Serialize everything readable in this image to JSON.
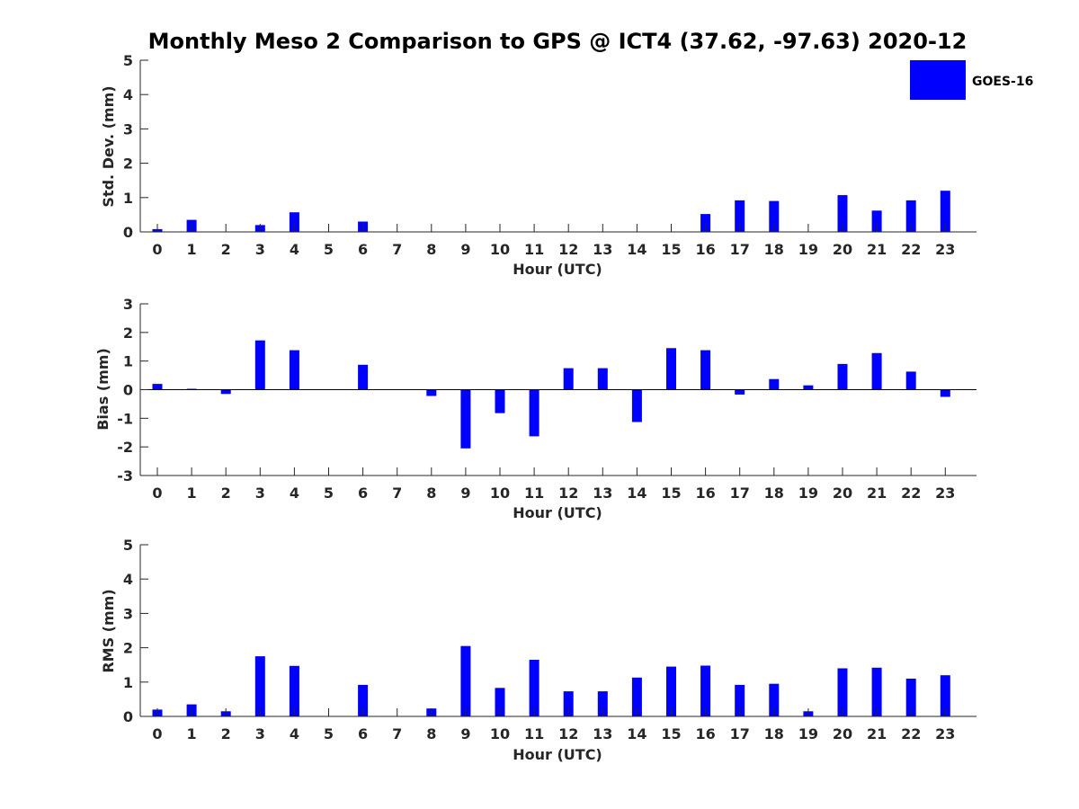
{
  "colors": {
    "bar": "#0000ff",
    "axis": "#262626",
    "background": "#ffffff"
  },
  "chart_data": [
    {
      "type": "bar",
      "title": "Monthly Meso 2 Comparison to GPS @ ICT4 (37.62, -97.63) 2020-12",
      "xlabel": "Hour (UTC)",
      "ylabel": "Std. Dev. (mm)",
      "ylim": [
        0,
        5
      ],
      "yticks": [
        "0",
        "1",
        "2",
        "3",
        "4",
        "5"
      ],
      "categories": [
        "0",
        "1",
        "2",
        "3",
        "4",
        "5",
        "6",
        "7",
        "8",
        "9",
        "10",
        "11",
        "12",
        "13",
        "14",
        "15",
        "16",
        "17",
        "18",
        "19",
        "20",
        "21",
        "22",
        "23"
      ],
      "series": [
        {
          "name": "GOES-16",
          "values": [
            0.08,
            0.35,
            0,
            0.2,
            0.57,
            0,
            0.3,
            0,
            0,
            0,
            0,
            0,
            0,
            0,
            0,
            0,
            0.52,
            0.92,
            0.9,
            0,
            1.07,
            0.62,
            0.92,
            1.2
          ]
        }
      ],
      "legend": {
        "position": "top-right",
        "entries": [
          "GOES-16"
        ]
      },
      "grid": false
    },
    {
      "type": "bar",
      "xlabel": "Hour (UTC)",
      "ylabel": "Bias (mm)",
      "ylim": [
        -3,
        3
      ],
      "yticks": [
        "-3",
        "-2",
        "-1",
        "0",
        "1",
        "2",
        "3"
      ],
      "categories": [
        "0",
        "1",
        "2",
        "3",
        "4",
        "5",
        "6",
        "7",
        "8",
        "9",
        "10",
        "11",
        "12",
        "13",
        "14",
        "15",
        "16",
        "17",
        "18",
        "19",
        "20",
        "21",
        "22",
        "23"
      ],
      "series": [
        {
          "values": [
            0.2,
            0.03,
            -0.15,
            1.72,
            1.38,
            0,
            0.87,
            0,
            -0.22,
            -2.05,
            -0.82,
            -1.63,
            0.75,
            0.75,
            -1.13,
            1.45,
            1.38,
            -0.17,
            0.37,
            0.15,
            0.9,
            1.28,
            0.63,
            -0.25
          ]
        }
      ],
      "grid": false
    },
    {
      "type": "bar",
      "xlabel": "Hour (UTC)",
      "ylabel": "RMS (mm)",
      "ylim": [
        0,
        5
      ],
      "yticks": [
        "0",
        "1",
        "2",
        "3",
        "4",
        "5"
      ],
      "categories": [
        "0",
        "1",
        "2",
        "3",
        "4",
        "5",
        "6",
        "7",
        "8",
        "9",
        "10",
        "11",
        "12",
        "13",
        "14",
        "15",
        "16",
        "17",
        "18",
        "19",
        "20",
        "21",
        "22",
        "23"
      ],
      "series": [
        {
          "values": [
            0.2,
            0.35,
            0.15,
            1.75,
            1.47,
            0,
            0.92,
            0,
            0.23,
            2.05,
            0.83,
            1.65,
            0.73,
            0.73,
            1.13,
            1.45,
            1.48,
            0.92,
            0.95,
            0.15,
            1.4,
            1.42,
            1.1,
            1.2
          ]
        }
      ],
      "grid": false
    }
  ]
}
